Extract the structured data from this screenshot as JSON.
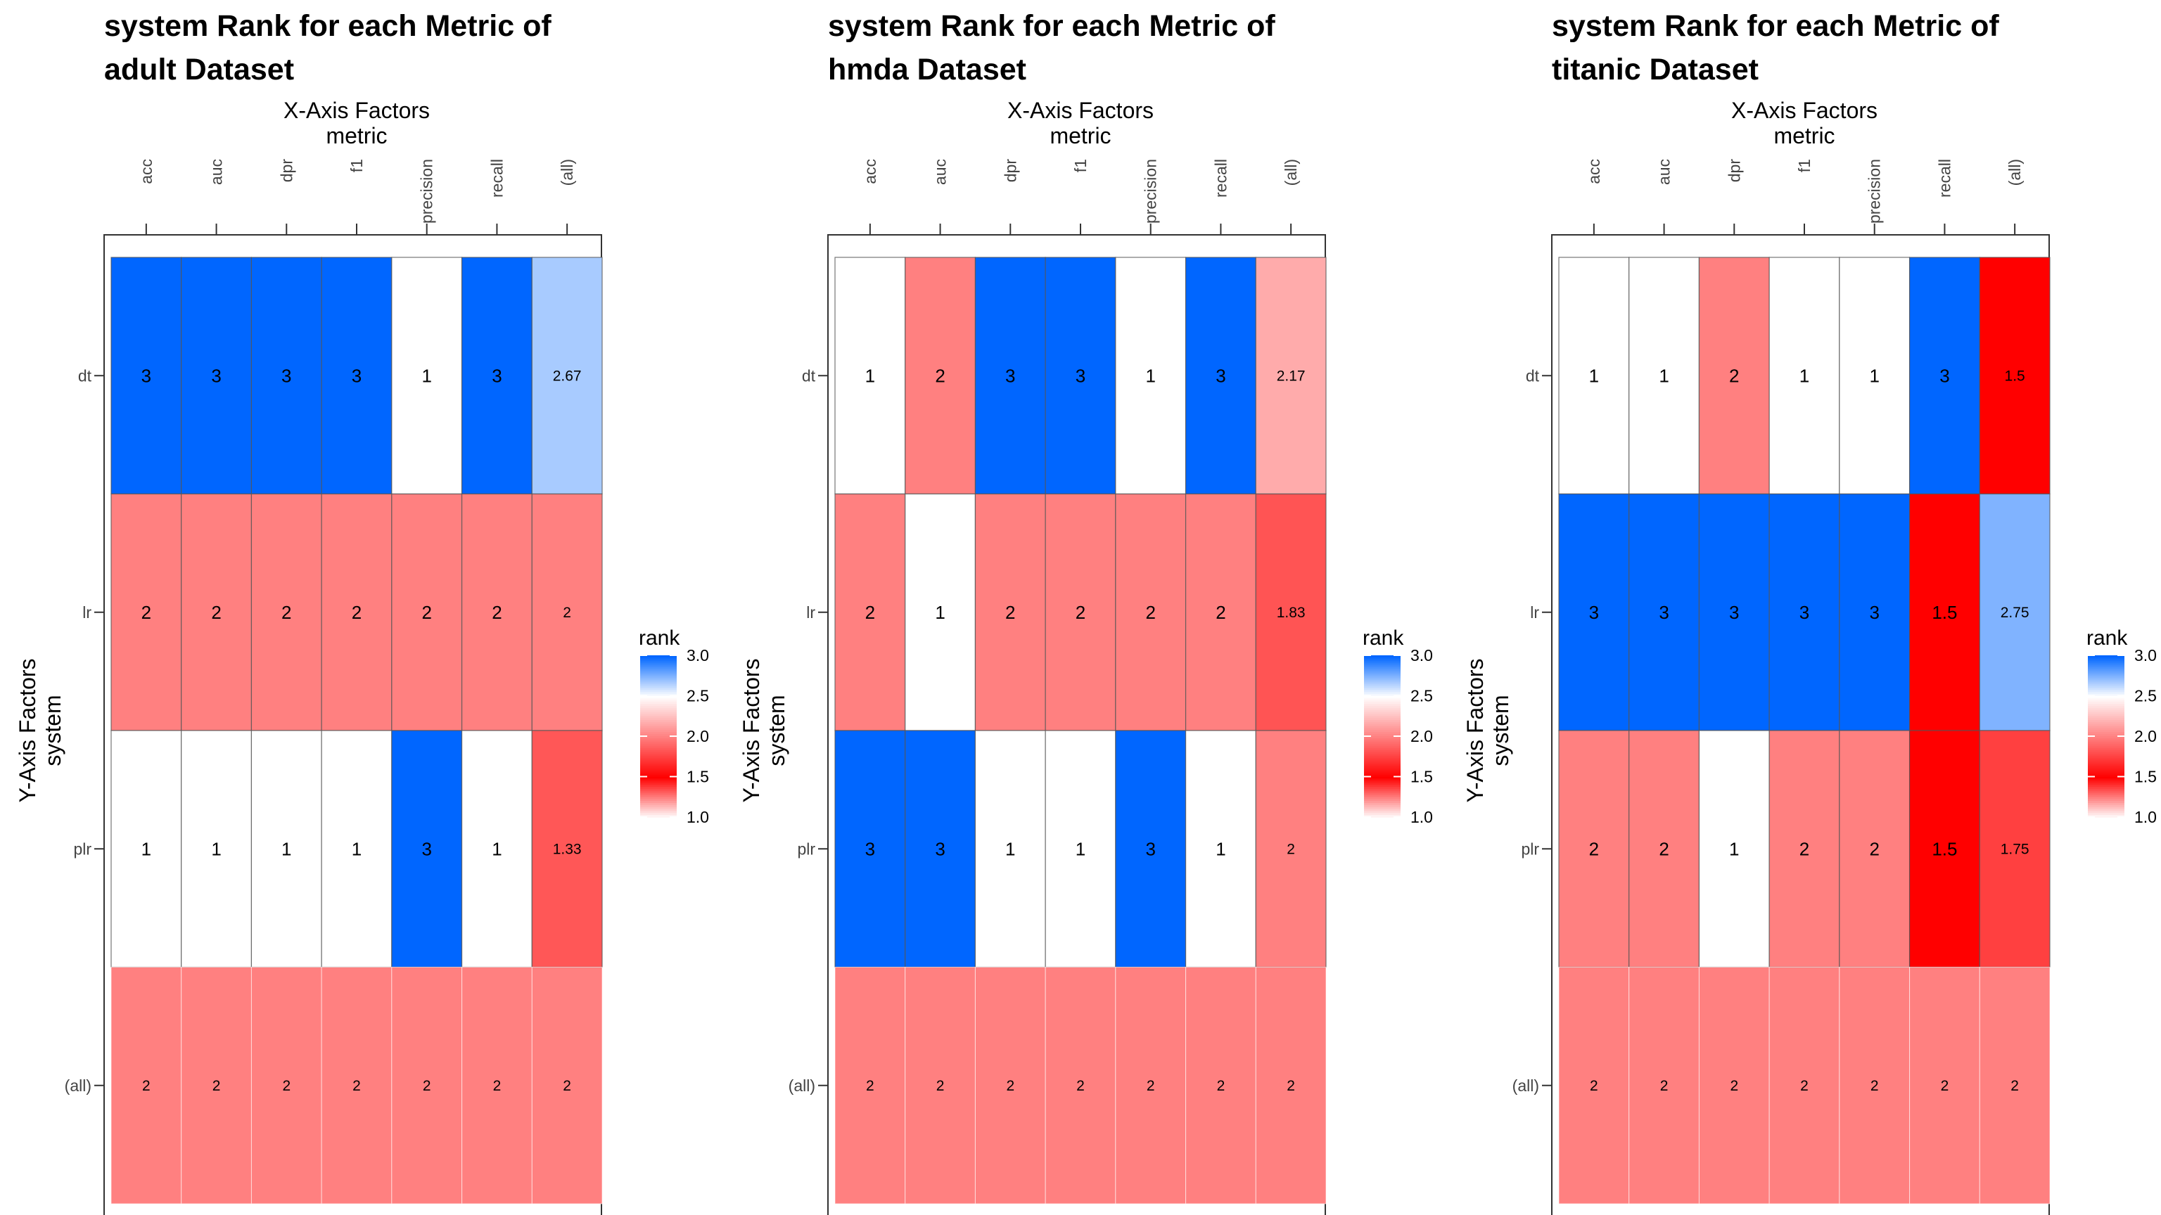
{
  "palette": {
    "low_color": "#ffffff",
    "mid_color": "#ff0000",
    "high_color": "#0066ff",
    "cell_border": "#555555",
    "frame": "#333333"
  },
  "chart_data": [
    {
      "type": "heatmap",
      "title_line1": "system Rank for each Metric of",
      "title_line2": "adult Dataset",
      "xlabel": "X-Axis Factors",
      "xsublabel": "metric",
      "ylabel": "Y-Axis Factors",
      "ysublabel": "system",
      "x_categories": [
        "acc",
        "auc",
        "dpr",
        "f1",
        "precision",
        "recall",
        "(all)"
      ],
      "y_categories": [
        "dt",
        "lr",
        "plr",
        "(all)"
      ],
      "values": [
        [
          3,
          3,
          3,
          3,
          1,
          3,
          2.67
        ],
        [
          2,
          2,
          2,
          2,
          2,
          2,
          2
        ],
        [
          1,
          1,
          1,
          1,
          3,
          1,
          1.33
        ],
        [
          2,
          2,
          2,
          2,
          2,
          2,
          2
        ]
      ],
      "legend": {
        "title": "rank",
        "range": [
          1,
          3
        ],
        "ticks": [
          "3.0",
          "2.5",
          "2.0",
          "1.5",
          "1.0"
        ],
        "position": "right"
      }
    },
    {
      "type": "heatmap",
      "title_line1": "system Rank for each Metric of",
      "title_line2": "hmda Dataset",
      "xlabel": "X-Axis Factors",
      "xsublabel": "metric",
      "ylabel": "Y-Axis Factors",
      "ysublabel": "system",
      "x_categories": [
        "acc",
        "auc",
        "dpr",
        "f1",
        "precision",
        "recall",
        "(all)"
      ],
      "y_categories": [
        "dt",
        "lr",
        "plr",
        "(all)"
      ],
      "values": [
        [
          1,
          2,
          3,
          3,
          1,
          3,
          2.17
        ],
        [
          2,
          1,
          2,
          2,
          2,
          2,
          1.83
        ],
        [
          3,
          3,
          1,
          1,
          3,
          1,
          2
        ],
        [
          2,
          2,
          2,
          2,
          2,
          2,
          2
        ]
      ],
      "legend": {
        "title": "rank",
        "range": [
          1,
          3
        ],
        "ticks": [
          "3.0",
          "2.5",
          "2.0",
          "1.5",
          "1.0"
        ],
        "position": "right"
      }
    },
    {
      "type": "heatmap",
      "title_line1": "system Rank for each Metric of",
      "title_line2": "titanic Dataset",
      "xlabel": "X-Axis Factors",
      "xsublabel": "metric",
      "ylabel": "Y-Axis Factors",
      "ysublabel": "system",
      "x_categories": [
        "acc",
        "auc",
        "dpr",
        "f1",
        "precision",
        "recall",
        "(all)"
      ],
      "y_categories": [
        "dt",
        "lr",
        "plr",
        "(all)"
      ],
      "values": [
        [
          1,
          1,
          2,
          1,
          1,
          3,
          1.5
        ],
        [
          3,
          3,
          3,
          3,
          3,
          1.5,
          2.75
        ],
        [
          2,
          2,
          1,
          2,
          2,
          1.5,
          1.75
        ],
        [
          2,
          2,
          2,
          2,
          2,
          2,
          2
        ]
      ],
      "legend": {
        "title": "rank",
        "range": [
          1,
          3
        ],
        "ticks": [
          "3.0",
          "2.5",
          "2.0",
          "1.5",
          "1.0"
        ],
        "position": "right"
      }
    }
  ]
}
